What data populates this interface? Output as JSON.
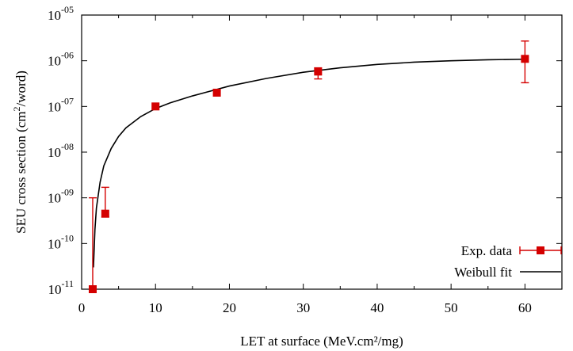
{
  "chart_data": {
    "type": "scatter",
    "xlabel": "LET at surface (MeV.cm²/mg)",
    "ylabel_main": "SEU cross section (cm",
    "ylabel_sup": "2",
    "ylabel_tail": "/word)",
    "xlim": [
      0,
      65
    ],
    "ylim": [
      1e-11,
      1e-05
    ],
    "y_scale": "log",
    "x_ticks": [
      0,
      10,
      20,
      30,
      40,
      50,
      60
    ],
    "y_ticks": [
      {
        "value": 1e-11,
        "base": "10",
        "exp": "-11"
      },
      {
        "value": 1e-10,
        "base": "10",
        "exp": "-10"
      },
      {
        "value": 1e-09,
        "base": "10",
        "exp": "-09"
      },
      {
        "value": 1e-08,
        "base": "10",
        "exp": "-08"
      },
      {
        "value": 1e-07,
        "base": "10",
        "exp": "-07"
      },
      {
        "value": 1e-06,
        "base": "10",
        "exp": "-06"
      },
      {
        "value": 1e-05,
        "base": "10",
        "exp": "-05"
      }
    ],
    "grid": false,
    "legend_position": "bottom-right",
    "series": [
      {
        "name": "Exp. data",
        "kind": "points_with_errorbars",
        "color": "#d40000",
        "points": [
          {
            "x": 1.5,
            "y": 1e-11,
            "ylow": 1e-11,
            "yhigh": 1e-09
          },
          {
            "x": 3.2,
            "y": 4.5e-10,
            "ylow": 3.8e-10,
            "yhigh": 1.7e-09
          },
          {
            "x": 10.0,
            "y": 1e-07,
            "ylow": 1e-07,
            "yhigh": 1e-07
          },
          {
            "x": 18.3,
            "y": 2e-07,
            "ylow": 2e-07,
            "yhigh": 2e-07
          },
          {
            "x": 32.0,
            "y": 5.8e-07,
            "ylow": 4e-07,
            "yhigh": 7e-07
          },
          {
            "x": 60.0,
            "y": 1.1e-06,
            "ylow": 3.3e-07,
            "yhigh": 2.7e-06
          }
        ]
      },
      {
        "name": "Weibull fit",
        "kind": "line",
        "color": "#000000",
        "points": [
          {
            "x": 1.6,
            "y": 3e-11
          },
          {
            "x": 1.8,
            "y": 2e-10
          },
          {
            "x": 2.0,
            "y": 6e-10
          },
          {
            "x": 2.5,
            "y": 2.2e-09
          },
          {
            "x": 3.0,
            "y": 5e-09
          },
          {
            "x": 4.0,
            "y": 1.2e-08
          },
          {
            "x": 5.0,
            "y": 2.2e-08
          },
          {
            "x": 6.0,
            "y": 3.4e-08
          },
          {
            "x": 8.0,
            "y": 6e-08
          },
          {
            "x": 10.0,
            "y": 9e-08
          },
          {
            "x": 12.0,
            "y": 1.2e-07
          },
          {
            "x": 15.0,
            "y": 1.7e-07
          },
          {
            "x": 20.0,
            "y": 2.8e-07
          },
          {
            "x": 25.0,
            "y": 4.1e-07
          },
          {
            "x": 30.0,
            "y": 5.6e-07
          },
          {
            "x": 35.0,
            "y": 7e-07
          },
          {
            "x": 40.0,
            "y": 8.3e-07
          },
          {
            "x": 45.0,
            "y": 9.3e-07
          },
          {
            "x": 50.0,
            "y": 1e-06
          },
          {
            "x": 55.0,
            "y": 1.05e-06
          },
          {
            "x": 60.0,
            "y": 1.08e-06
          }
        ]
      }
    ]
  }
}
